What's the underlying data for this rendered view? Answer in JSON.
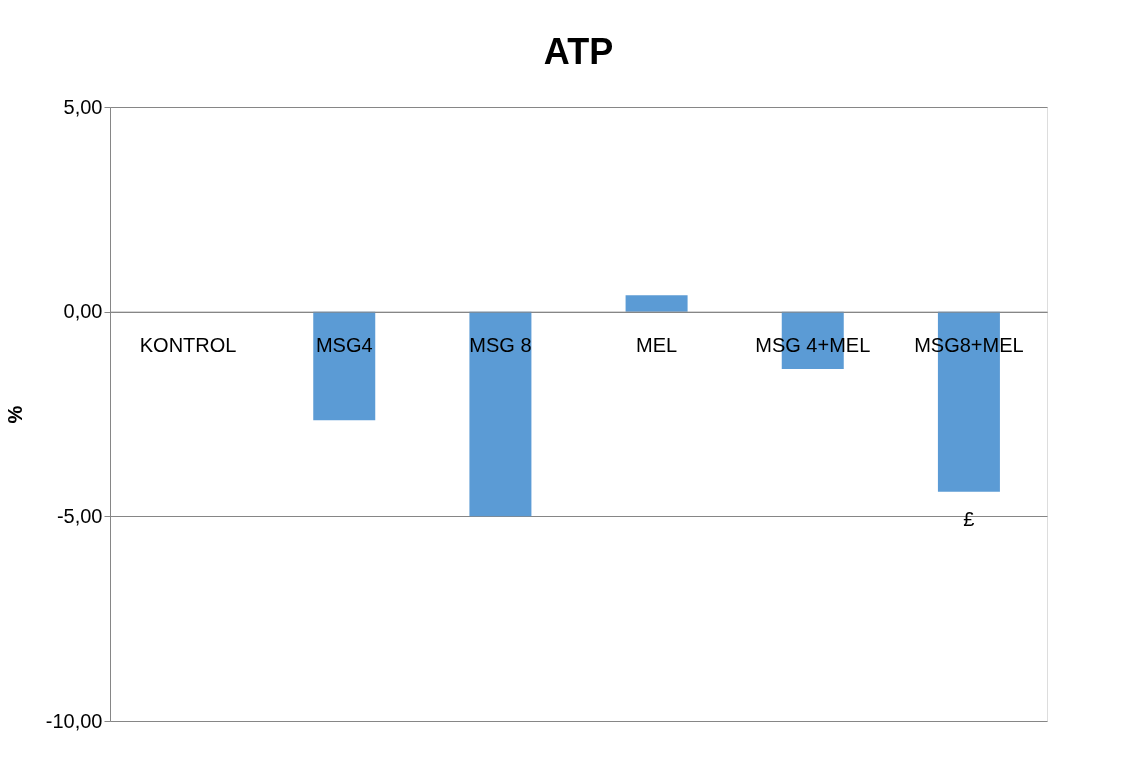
{
  "chart_data": {
    "type": "bar",
    "title": "ATP",
    "ylabel": "%",
    "categories": [
      "KONTROL",
      "MSG4",
      "MSG 8",
      "MEL",
      "MSG 4+MEL",
      "MSG8+MEL"
    ],
    "values": [
      0,
      -2.65,
      -5.0,
      0.4,
      -1.4,
      -4.4
    ],
    "color": "#5b9bd5",
    "ylim": [
      -10,
      5
    ],
    "yticks": [
      {
        "value": -10,
        "label": "-10,00"
      },
      {
        "value": -5,
        "label": "-5,00"
      },
      {
        "value": 0,
        "label": "0,00"
      },
      {
        "value": 5,
        "label": "5,00"
      }
    ],
    "grid": "y",
    "annotations": [
      {
        "text": "£",
        "x": "MSG8+MEL",
        "y": -4.4
      }
    ]
  }
}
